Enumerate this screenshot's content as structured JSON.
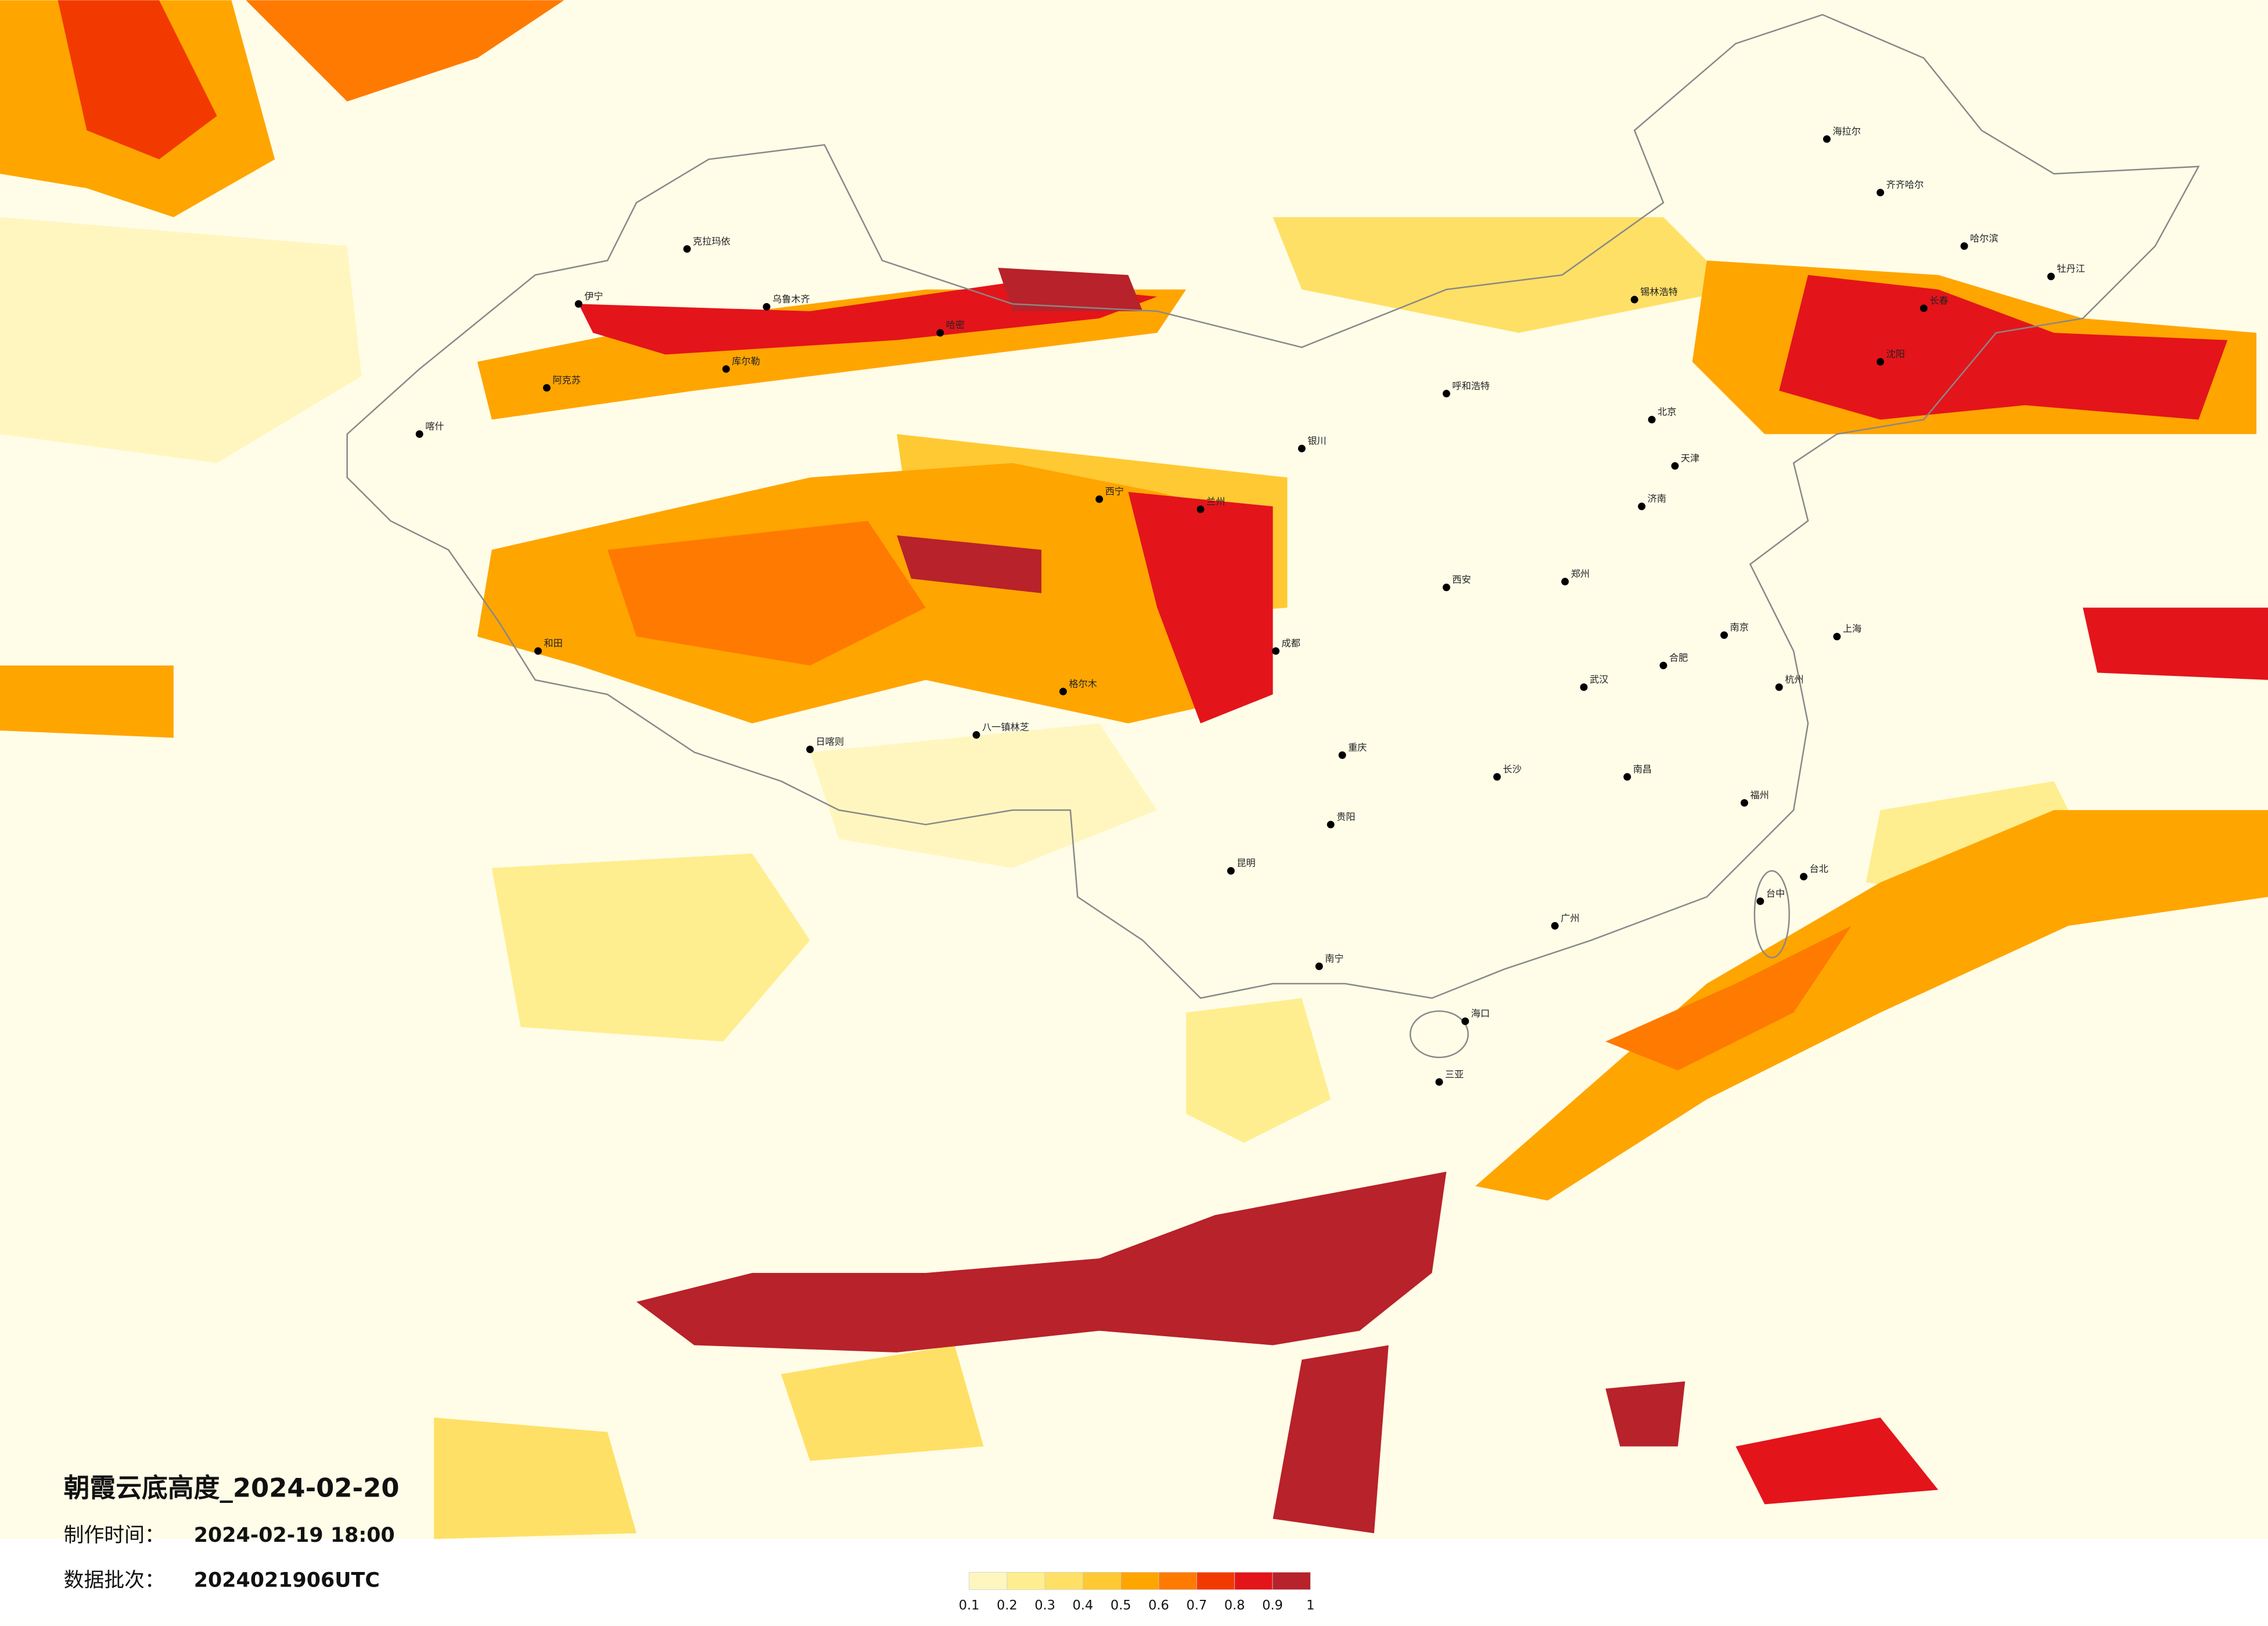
{
  "title": "朝霞云底高度_2024-02-20",
  "produced": {
    "label": "制作时间：",
    "value": "2024-02-19 18:00"
  },
  "batch": {
    "label": "数据批次：",
    "value": "2024021906UTC"
  },
  "legend": {
    "colors": [
      "#fffbe0",
      "#fff6bf",
      "#ffee8f",
      "#ffe066",
      "#ffc933",
      "#ffa500",
      "#ff7a00",
      "#f23a00",
      "#e4141b",
      "#b8222a"
    ],
    "ticks": [
      0.1,
      0.2,
      0.3,
      0.4,
      0.5,
      0.6,
      0.7,
      0.8,
      0.9,
      1
    ]
  },
  "cities": [
    "克拉玛依",
    "伊宁",
    "阿克苏",
    "喀什",
    "和田",
    "哈密",
    "乌鲁木齐",
    "库尔勒",
    "日喀则",
    "八一镇林芝",
    "格尔木",
    "西宁",
    "兰州",
    "银川",
    "呼和浩特",
    "锡林浩特",
    "海拉尔",
    "齐齐哈尔",
    "哈尔滨",
    "牡丹江",
    "长春",
    "沈阳",
    "北京",
    "天津",
    "济南",
    "郑州",
    "西安",
    "成都",
    "重庆",
    "贵阳",
    "昆明",
    "南宁",
    "广州",
    "长沙",
    "武汉",
    "南昌",
    "福州",
    "杭州",
    "上海",
    "南京",
    "合肥",
    "海口",
    "三亚",
    "台北",
    "台中"
  ]
}
